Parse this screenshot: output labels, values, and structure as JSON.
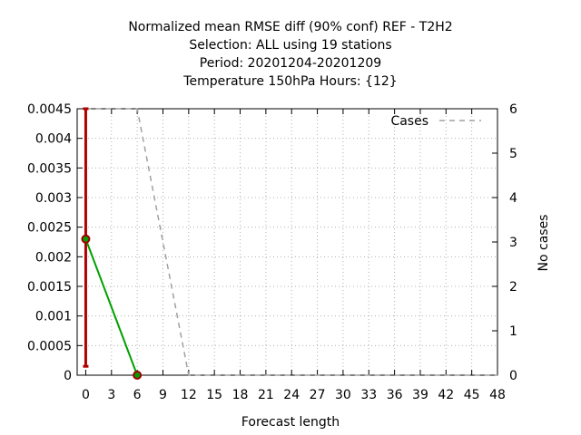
{
  "chart_data": {
    "type": "line",
    "title_lines": [
      "Normalized mean RMSE diff (90% conf) REF - T2H2",
      "Selection: ALL using    19 stations",
      "Period: 20201204-20201209",
      "Temperature 150hPa   Hours: {12}"
    ],
    "xlabel": "Forecast length",
    "ylabel_right": "No cases",
    "xlim": [
      -1,
      48
    ],
    "ylim": [
      0,
      0.0045
    ],
    "y2lim": [
      0,
      6
    ],
    "x_ticks": [
      0,
      3,
      6,
      9,
      12,
      15,
      18,
      21,
      24,
      27,
      30,
      33,
      36,
      39,
      42,
      45,
      48
    ],
    "y_tick_labels": [
      "0",
      "0.0005",
      "0.001",
      "0.0015",
      "0.002",
      "0.0025",
      "0.003",
      "0.0035",
      "0.004",
      "0.0045"
    ],
    "y_tick_values": [
      0,
      0.0005,
      0.001,
      0.0015,
      0.002,
      0.0025,
      0.003,
      0.0035,
      0.004,
      0.0045
    ],
    "y2_ticks": [
      0,
      1,
      2,
      3,
      4,
      5,
      6
    ],
    "grid": true,
    "legend_position": "top-right",
    "series": [
      {
        "x": [
          0,
          6
        ],
        "y": [
          0.0023,
          0.0
        ],
        "color": "#00a000",
        "marker_color": "#a00000"
      },
      {
        "name": "Cases",
        "axis": "right",
        "style": "dashed",
        "color": "#a0a0a0",
        "x": [
          0,
          6,
          12,
          48
        ],
        "y": [
          6,
          6,
          0,
          0
        ]
      }
    ],
    "error_bars": [
      {
        "x": 0,
        "low": 0.00015,
        "high": 0.0045,
        "color": "#b00000"
      }
    ]
  }
}
